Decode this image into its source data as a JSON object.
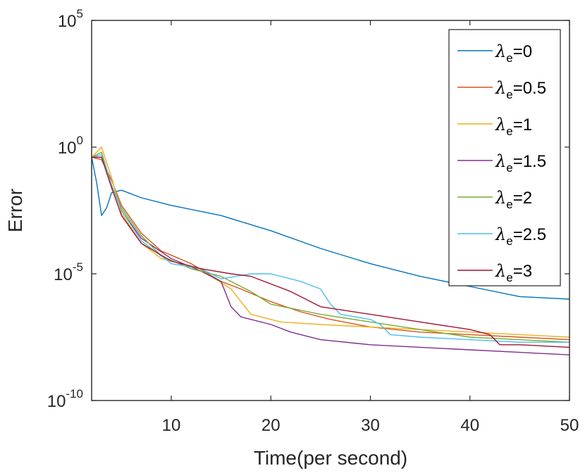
{
  "chart_data": {
    "type": "line",
    "title": "",
    "xlabel": "Time(per second)",
    "ylabel": "Error",
    "xlim": [
      2,
      50
    ],
    "ylim_log10": [
      -10,
      5
    ],
    "y_scale": "log",
    "grid": false,
    "legend_position": "top-right",
    "x_ticks": [
      10,
      20,
      30,
      40,
      50
    ],
    "x_tick_labels": [
      "10",
      "20",
      "30",
      "40",
      "50"
    ],
    "y_ticks_log10": [
      -10,
      -5,
      0,
      5
    ],
    "y_tick_labels": [
      {
        "base": "10",
        "exp": "-10"
      },
      {
        "base": "10",
        "exp": "-5"
      },
      {
        "base": "10",
        "exp": "0"
      },
      {
        "base": "10",
        "exp": "5"
      }
    ],
    "series": [
      {
        "name": "λe=0",
        "symbol": "λ",
        "sub": "e",
        "value_text": "=0",
        "color": "#0072BD",
        "x": [
          2,
          2.5,
          3,
          3.5,
          4,
          5,
          7,
          10,
          15,
          20,
          25,
          30,
          35,
          40,
          45,
          50
        ],
        "log10y": [
          -0.4,
          -1.4,
          -2.7,
          -2.4,
          -1.8,
          -1.7,
          -2.0,
          -2.3,
          -2.7,
          -3.3,
          -4.0,
          -4.6,
          -5.1,
          -5.5,
          -5.9,
          -6.0
        ]
      },
      {
        "name": "λe=0.5",
        "symbol": "λ",
        "sub": "e",
        "value_text": "=0.5",
        "color": "#D95319",
        "x": [
          2,
          3,
          4,
          5,
          7,
          9,
          12,
          15,
          17,
          20,
          23,
          26,
          30,
          35,
          40,
          45,
          50
        ],
        "log10y": [
          -0.4,
          -0.5,
          -1.3,
          -2.3,
          -3.4,
          -4.1,
          -4.6,
          -5.3,
          -5.6,
          -6.1,
          -6.5,
          -6.8,
          -7.1,
          -7.3,
          -7.4,
          -7.5,
          -7.6
        ]
      },
      {
        "name": "λe=1",
        "symbol": "λ",
        "sub": "e",
        "value_text": "=1",
        "color": "#EDB120",
        "x": [
          2,
          3,
          4,
          5,
          7,
          9,
          12,
          14,
          16,
          18,
          21,
          25,
          30,
          35,
          40,
          45,
          50
        ],
        "log10y": [
          -0.4,
          0.0,
          -1.2,
          -2.6,
          -3.8,
          -4.4,
          -4.7,
          -5.1,
          -5.6,
          -6.6,
          -6.9,
          -7.0,
          -7.1,
          -7.2,
          -7.3,
          -7.4,
          -7.5
        ]
      },
      {
        "name": "λe=1.5",
        "symbol": "λ",
        "sub": "e",
        "value_text": "=1.5",
        "color": "#7E2F8E",
        "x": [
          2,
          3,
          4,
          5,
          7,
          10,
          13,
          15,
          16,
          17,
          20,
          22,
          25,
          30,
          35,
          40,
          45,
          50
        ],
        "log10y": [
          -0.4,
          -0.4,
          -1.5,
          -2.5,
          -3.6,
          -4.4,
          -4.9,
          -5.3,
          -6.3,
          -6.7,
          -7.0,
          -7.3,
          -7.6,
          -7.8,
          -7.9,
          -8.0,
          -8.1,
          -8.2
        ]
      },
      {
        "name": "λe=2",
        "symbol": "λ",
        "sub": "e",
        "value_text": "=2",
        "color": "#77AC30",
        "x": [
          2,
          3,
          4,
          5,
          7,
          9,
          12,
          15,
          18,
          20,
          25,
          30,
          35,
          40,
          45,
          50
        ],
        "log10y": [
          -0.4,
          -0.2,
          -1.5,
          -2.4,
          -3.5,
          -4.3,
          -4.8,
          -5.1,
          -5.7,
          -6.2,
          -6.6,
          -6.9,
          -7.2,
          -7.5,
          -7.6,
          -7.7
        ]
      },
      {
        "name": "λe=2.5",
        "symbol": "λ",
        "sub": "e",
        "value_text": "=2.5",
        "color": "#4DBEEE",
        "x": [
          2,
          3,
          4,
          5,
          7,
          10,
          13,
          15,
          18,
          20,
          23,
          25,
          26,
          27,
          30,
          31,
          32,
          35,
          40,
          45,
          50
        ],
        "log10y": [
          -0.4,
          -0.3,
          -1.5,
          -2.5,
          -3.7,
          -4.6,
          -4.8,
          -5.2,
          -5.0,
          -5.0,
          -5.3,
          -5.6,
          -6.2,
          -6.6,
          -6.8,
          -7.0,
          -7.4,
          -7.5,
          -7.6,
          -7.7,
          -7.7
        ]
      },
      {
        "name": "λe=3",
        "symbol": "λ",
        "sub": "e",
        "value_text": "=3",
        "color": "#A2142F",
        "x": [
          2,
          3,
          4,
          5,
          7,
          10,
          13,
          16,
          18,
          20,
          22,
          25,
          30,
          35,
          40,
          42,
          43,
          45,
          50
        ],
        "log10y": [
          -0.4,
          -0.4,
          -1.6,
          -2.7,
          -3.8,
          -4.5,
          -4.8,
          -5.0,
          -5.1,
          -5.4,
          -5.7,
          -6.3,
          -6.6,
          -6.9,
          -7.2,
          -7.4,
          -7.8,
          -7.8,
          -7.9
        ]
      }
    ]
  }
}
